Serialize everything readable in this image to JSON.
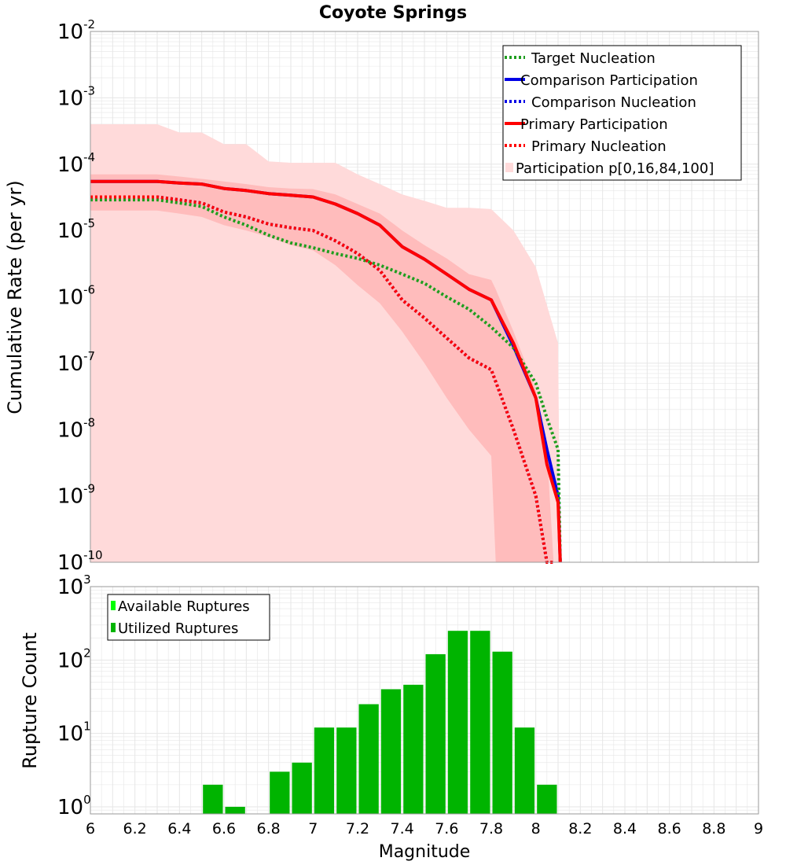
{
  "colors": {
    "target": "#1f9e1f",
    "comparison": "#0000e6",
    "primary": "#ff0000",
    "band_outer": "#ffdada",
    "band_inner": "#ffbcbc",
    "available": "#00ff00",
    "utilized": "#00b400",
    "grid": "#e6e6e6"
  },
  "chart_data": [
    {
      "type": "line",
      "title": "Coyote Springs",
      "xlabel": "Magnitude",
      "ylabel": "Cumulative Rate (per yr)",
      "yscale": "log",
      "xlim": [
        6,
        9
      ],
      "ylim_exp": [
        -10,
        -2
      ],
      "x_ticks": [
        "6",
        "6.2",
        "6.4",
        "6.6",
        "6.8",
        "7",
        "7.2",
        "7.4",
        "7.6",
        "7.8",
        "8",
        "8.2",
        "8.4",
        "8.6",
        "8.8",
        "9"
      ],
      "y_ticks": [
        {
          "base": "10",
          "exp": "-2"
        },
        {
          "base": "10",
          "exp": "-3"
        },
        {
          "base": "10",
          "exp": "-4"
        },
        {
          "base": "10",
          "exp": "-5"
        },
        {
          "base": "10",
          "exp": "-6"
        },
        {
          "base": "10",
          "exp": "-7"
        },
        {
          "base": "10",
          "exp": "-8"
        },
        {
          "base": "10",
          "exp": "-9"
        },
        {
          "base": "10",
          "exp": "-10"
        }
      ],
      "legend_position": "top-right",
      "legend": [
        {
          "label": "Target Nucleation",
          "style": "dotted",
          "color": "#1f9e1f"
        },
        {
          "label": "Comparison Participation",
          "style": "solid",
          "color": "#0000e6"
        },
        {
          "label": "Comparison Nucleation",
          "style": "dotted",
          "color": "#0000e6"
        },
        {
          "label": "Primary Participation",
          "style": "solid",
          "color": "#ff0000"
        },
        {
          "label": "Primary Nucleation",
          "style": "dotted",
          "color": "#ff0000"
        },
        {
          "label": "Participation p[0,16,84,100]",
          "style": "band",
          "color": "#ffdada"
        }
      ],
      "series": [
        {
          "name": "Comparison Participation",
          "style": "solid",
          "color": "#0000e6",
          "x": [
            6.0,
            6.3,
            6.4,
            6.5,
            6.6,
            6.7,
            6.8,
            6.9,
            7.0,
            7.1,
            7.2,
            7.3,
            7.4,
            7.5,
            7.6,
            7.7,
            7.8,
            7.9,
            8.0,
            8.05,
            8.1,
            8.11
          ],
          "y": [
            5.5e-05,
            5.5e-05,
            5.2e-05,
            5e-05,
            4.3e-05,
            4e-05,
            3.6e-05,
            3.4e-05,
            3.2e-05,
            2.5e-05,
            1.8e-05,
            1.2e-05,
            5.7e-06,
            3.7e-06,
            2.2e-06,
            1.3e-06,
            9e-07,
            1.8e-07,
            3e-08,
            5e-09,
            1e-09,
            1e-10
          ]
        },
        {
          "name": "Comparison Nucleation",
          "style": "dotted",
          "color": "#0000e6",
          "x": [
            6.0,
            6.3,
            6.4,
            6.5,
            6.6,
            6.7,
            6.8,
            6.9,
            7.0,
            7.1,
            7.2,
            7.3,
            7.4,
            7.5,
            7.6,
            7.7,
            7.8,
            7.9,
            8.0,
            8.05,
            8.08
          ],
          "y": [
            3.2e-05,
            3.2e-05,
            2.9e-05,
            2.6e-05,
            1.9e-05,
            1.6e-05,
            1.25e-05,
            1.1e-05,
            1e-05,
            7e-06,
            4.5e-06,
            2.5e-06,
            9e-07,
            4.8e-07,
            2.4e-07,
            1.2e-07,
            8e-08,
            1e-08,
            1e-09,
            1e-10,
            1e-10
          ]
        },
        {
          "name": "Target Nucleation",
          "style": "dotted",
          "color": "#1f9e1f",
          "x": [
            6.0,
            6.3,
            6.4,
            6.5,
            6.6,
            6.7,
            6.8,
            6.9,
            7.0,
            7.1,
            7.2,
            7.3,
            7.4,
            7.5,
            7.6,
            7.7,
            7.8,
            7.9,
            8.0,
            8.05,
            8.1,
            8.11
          ],
          "y": [
            2.9e-05,
            2.9e-05,
            2.6e-05,
            2.3e-05,
            1.6e-05,
            1.2e-05,
            8.5e-06,
            6.5e-06,
            5.5e-06,
            4.5e-06,
            3.8e-06,
            3e-06,
            2.2e-06,
            1.6e-06,
            1e-06,
            6.5e-07,
            3.5e-07,
            1.7e-07,
            5e-08,
            1.5e-08,
            5e-09,
            1e-10
          ]
        },
        {
          "name": "Primary Nucleation",
          "style": "dotted",
          "color": "#ff0000",
          "x": [
            6.0,
            6.3,
            6.4,
            6.5,
            6.6,
            6.7,
            6.8,
            6.9,
            7.0,
            7.1,
            7.2,
            7.3,
            7.4,
            7.5,
            7.6,
            7.7,
            7.8,
            7.9,
            8.0,
            8.05,
            8.08
          ],
          "y": [
            3.2e-05,
            3.2e-05,
            2.9e-05,
            2.6e-05,
            1.9e-05,
            1.6e-05,
            1.25e-05,
            1.1e-05,
            1e-05,
            7e-06,
            4.5e-06,
            2.5e-06,
            9e-07,
            4.8e-07,
            2.4e-07,
            1.2e-07,
            8e-08,
            1e-08,
            1e-09,
            1e-10,
            1e-10
          ]
        },
        {
          "name": "Primary Participation",
          "style": "solid",
          "color": "#ff0000",
          "x": [
            6.0,
            6.3,
            6.4,
            6.5,
            6.6,
            6.7,
            6.8,
            6.9,
            7.0,
            7.1,
            7.2,
            7.3,
            7.4,
            7.5,
            7.6,
            7.7,
            7.8,
            7.9,
            8.0,
            8.05,
            8.1,
            8.11
          ],
          "y": [
            5.5e-05,
            5.5e-05,
            5.2e-05,
            5e-05,
            4.3e-05,
            4e-05,
            3.6e-05,
            3.4e-05,
            3.2e-05,
            2.5e-05,
            1.8e-05,
            1.2e-05,
            5.7e-06,
            3.7e-06,
            2.2e-06,
            1.3e-06,
            9e-07,
            2e-07,
            3e-08,
            3e-09,
            8e-10,
            1e-10
          ]
        }
      ],
      "bands": {
        "outer": {
          "x": [
            6.0,
            6.3,
            6.4,
            6.5,
            6.6,
            6.7,
            6.8,
            6.9,
            7.0,
            7.1,
            7.2,
            7.3,
            7.4,
            7.5,
            7.6,
            7.7,
            7.8,
            7.9,
            8.0,
            8.1,
            8.11
          ],
          "upper": [
            0.0004,
            0.0004,
            0.0003,
            0.0003,
            0.0002,
            0.0002,
            0.00011,
            0.000105,
            0.000105,
            0.000105,
            7e-05,
            5e-05,
            3.5e-05,
            2.8e-05,
            2.2e-05,
            2.2e-05,
            2.1e-05,
            1e-05,
            2.8e-06,
            2e-07,
            1e-10
          ],
          "lower": [
            1e-10,
            1e-10,
            1e-10,
            1e-10,
            1e-10,
            1e-10,
            1e-10,
            1e-10,
            1e-10,
            1e-10,
            1e-10,
            1e-10,
            1e-10,
            1e-10,
            1e-10,
            1e-10,
            1e-10,
            1e-10,
            1e-10,
            1e-10,
            1e-10
          ]
        },
        "inner": {
          "x": [
            6.0,
            6.3,
            6.4,
            6.5,
            6.6,
            6.7,
            6.8,
            6.9,
            7.0,
            7.1,
            7.2,
            7.3,
            7.4,
            7.5,
            7.6,
            7.7,
            7.8,
            7.82,
            7.9,
            8.0,
            8.05,
            8.08
          ],
          "upper": [
            7e-05,
            7e-05,
            6.5e-05,
            6e-05,
            5.5e-05,
            5e-05,
            4.5e-05,
            4.3e-05,
            4.2e-05,
            3.5e-05,
            2.5e-05,
            1.8e-05,
            1e-05,
            6e-06,
            3.8e-06,
            2.2e-06,
            1.8e-06,
            1.3e-06,
            3e-07,
            4e-08,
            5e-09,
            1e-10
          ],
          "lower": [
            2e-05,
            2e-05,
            1.8e-05,
            1.6e-05,
            1.2e-05,
            1e-05,
            8e-06,
            6e-06,
            5e-06,
            3e-06,
            1.5e-06,
            8e-07,
            3e-07,
            1e-07,
            3e-08,
            1e-08,
            4e-09,
            1e-10,
            1e-10,
            1e-10,
            1e-10,
            1e-10
          ]
        }
      }
    },
    {
      "type": "bar",
      "xlabel": "Magnitude",
      "ylabel": "Rupture Count",
      "yscale": "log",
      "xlim": [
        6,
        9
      ],
      "ylim": [
        0.8,
        1000
      ],
      "y_ticks": [
        {
          "base": "10",
          "exp": "3"
        },
        {
          "base": "10",
          "exp": "2"
        },
        {
          "base": "10",
          "exp": "1"
        },
        {
          "base": "10",
          "exp": "0"
        }
      ],
      "legend_position": "top-left",
      "legend": [
        {
          "label": "Available Ruptures",
          "color": "#00ff00"
        },
        {
          "label": "Utilized Ruptures",
          "color": "#00b400"
        }
      ],
      "bin_width": 0.1,
      "bins": [
        6.55,
        6.65,
        6.85,
        6.95,
        7.05,
        7.15,
        7.25,
        7.35,
        7.45,
        7.55,
        7.65,
        7.75,
        7.85,
        7.95,
        8.05
      ],
      "series": [
        {
          "name": "Utilized Ruptures",
          "values": [
            2,
            1,
            3,
            4,
            12,
            12,
            25,
            40,
            46,
            120,
            250,
            250,
            130,
            12,
            2
          ]
        }
      ]
    }
  ]
}
